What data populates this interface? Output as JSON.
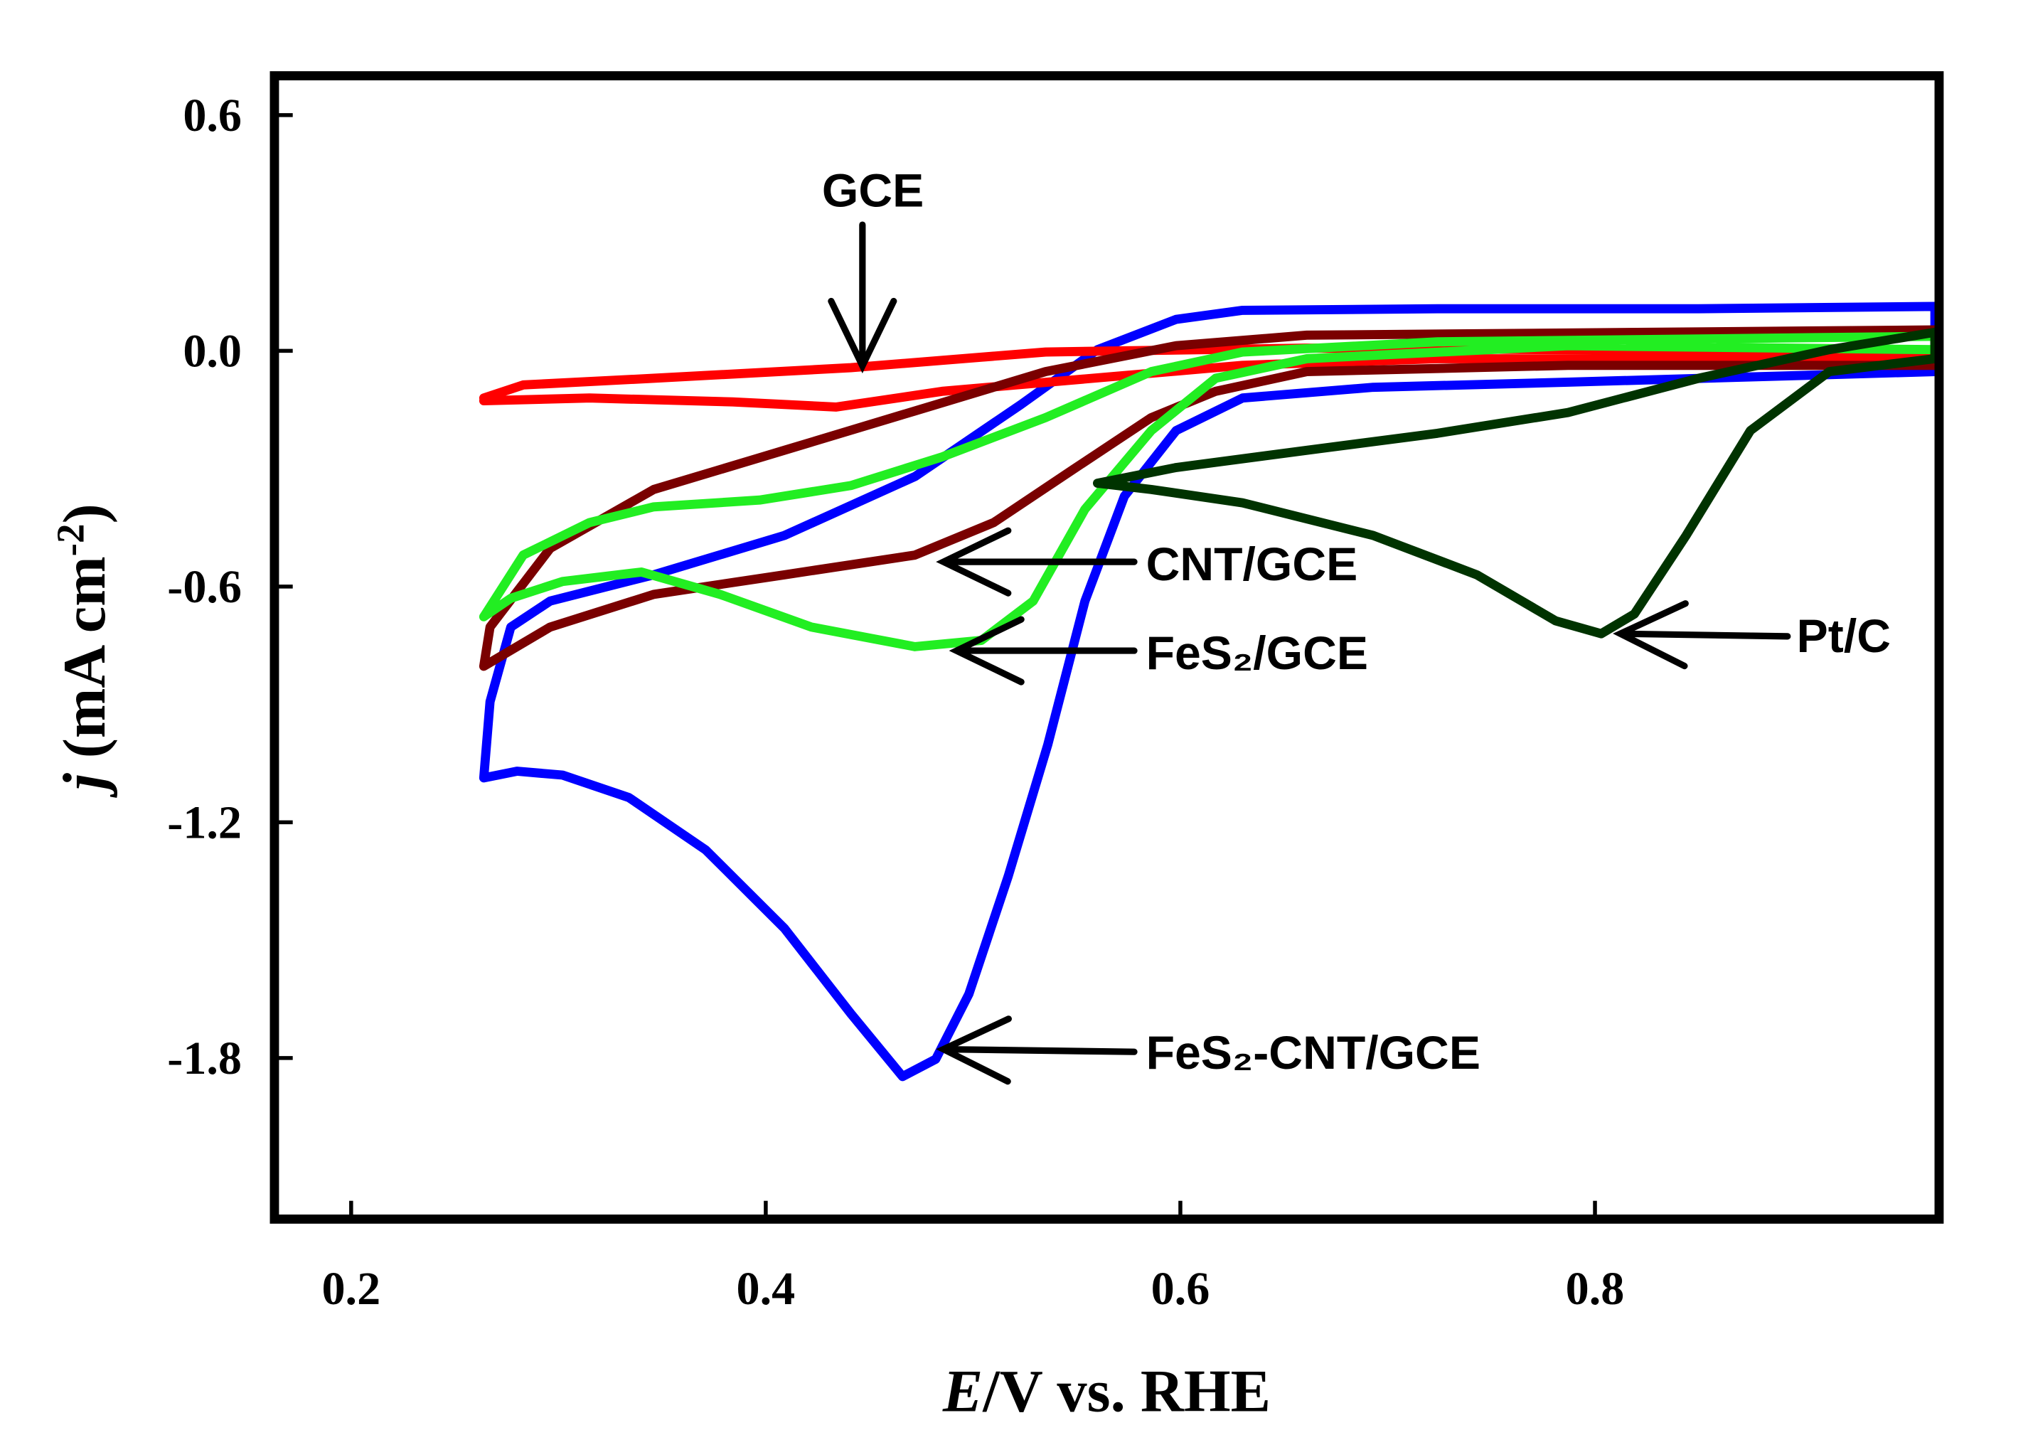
{
  "chart_data": {
    "type": "line",
    "xlabel": {
      "symbol": "E",
      "text": "/V vs. RHE"
    },
    "ylabel": {
      "symbol": "j",
      "text": " (mA cm",
      "exponent": "-2",
      "close": ")"
    },
    "xlim": [
      0.163,
      0.966
    ],
    "ylim": [
      -2.21,
      0.7
    ],
    "xticks": [
      0.2,
      0.4,
      0.6,
      0.8
    ],
    "yticks": [
      0.6,
      {
        "value": 0,
        "label": "0.0"
      },
      -0.6,
      -1.2,
      -1.8
    ],
    "series": [
      {
        "name": "FeS₂-CNT/GCE",
        "color": "#0000ff",
        "x": [
          0.264,
          0.28,
          0.302,
          0.334,
          0.371,
          0.409,
          0.441,
          0.466,
          0.482,
          0.498,
          0.517,
          0.536,
          0.554,
          0.573,
          0.598,
          0.63,
          0.693,
          0.787,
          0.964,
          0.964,
          0.85,
          0.724,
          0.63,
          0.598,
          0.56,
          0.523,
          0.472,
          0.409,
          0.346,
          0.296,
          0.277,
          0.267,
          0.264
        ],
        "values": [
          -1.087,
          -1.07,
          -1.08,
          -1.137,
          -1.27,
          -1.47,
          -1.687,
          -1.847,
          -1.803,
          -1.637,
          -1.337,
          -1.003,
          -0.637,
          -0.37,
          -0.203,
          -0.12,
          -0.093,
          -0.08,
          -0.053,
          0.113,
          0.107,
          0.107,
          0.103,
          0.08,
          0.003,
          -0.137,
          -0.32,
          -0.47,
          -0.57,
          -0.637,
          -0.703,
          -0.893,
          -1.087
        ]
      },
      {
        "name": "GCE",
        "color": "#ff0000",
        "x": [
          0.264,
          0.283,
          0.346,
          0.441,
          0.535,
          0.661,
          0.964,
          0.964,
          0.724,
          0.63,
          0.485,
          0.434,
          0.384,
          0.315,
          0.264
        ],
        "values": [
          -0.12,
          -0.087,
          -0.07,
          -0.043,
          -0.003,
          0.007,
          -0.003,
          -0.023,
          -0.02,
          -0.037,
          -0.103,
          -0.143,
          -0.13,
          -0.12,
          -0.127
        ]
      },
      {
        "name": "CNT/GCE",
        "color": "#7a0000",
        "x": [
          0.264,
          0.267,
          0.296,
          0.346,
          0.409,
          0.472,
          0.535,
          0.598,
          0.661,
          0.964,
          0.964,
          0.787,
          0.661,
          0.617,
          0.586,
          0.548,
          0.51,
          0.472,
          0.409,
          0.346,
          0.296,
          0.264
        ],
        "values": [
          -0.803,
          -0.703,
          -0.503,
          -0.353,
          -0.253,
          -0.153,
          -0.053,
          0.013,
          0.04,
          0.053,
          -0.037,
          -0.037,
          -0.053,
          -0.103,
          -0.17,
          -0.303,
          -0.437,
          -0.52,
          -0.57,
          -0.62,
          -0.703,
          -0.803
        ]
      },
      {
        "name": "FeS₂/GCE",
        "color": "#22ee22",
        "x": [
          0.264,
          0.283,
          0.315,
          0.346,
          0.397,
          0.441,
          0.485,
          0.535,
          0.586,
          0.63,
          0.724,
          0.964,
          0.964,
          0.787,
          0.661,
          0.617,
          0.586,
          0.554,
          0.529,
          0.504,
          0.472,
          0.422,
          0.378,
          0.34,
          0.302,
          0.277,
          0.264
        ],
        "values": [
          -0.677,
          -0.52,
          -0.437,
          -0.397,
          -0.38,
          -0.343,
          -0.27,
          -0.17,
          -0.053,
          -0.003,
          0.023,
          0.037,
          0.003,
          0.013,
          -0.02,
          -0.07,
          -0.203,
          -0.403,
          -0.637,
          -0.737,
          -0.753,
          -0.703,
          -0.62,
          -0.563,
          -0.587,
          -0.63,
          -0.677
        ]
      },
      {
        "name": "Pt/C",
        "color": "#003300",
        "x": [
          0.56,
          0.598,
          0.661,
          0.724,
          0.787,
          0.85,
          0.913,
          0.964,
          0.964,
          0.913,
          0.875,
          0.844,
          0.819,
          0.803,
          0.781,
          0.743,
          0.693,
          0.63,
          0.586,
          0.56
        ],
        "values": [
          -0.337,
          -0.297,
          -0.253,
          -0.21,
          -0.157,
          -0.07,
          0.003,
          0.047,
          -0.02,
          -0.053,
          -0.203,
          -0.47,
          -0.67,
          -0.72,
          -0.687,
          -0.57,
          -0.47,
          -0.387,
          -0.353,
          -0.337
        ]
      }
    ]
  }
}
